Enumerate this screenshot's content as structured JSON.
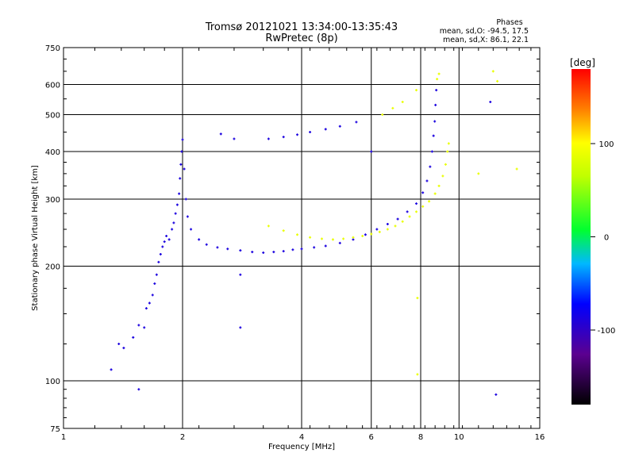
{
  "chart_data": {
    "type": "scatter",
    "title": "Tromsø 20121021 13:34:00-13:35:43",
    "subtitle": "RwPretec (8p)",
    "xlabel": "Frequency [MHz]",
    "ylabel": "Stationary phase Virtual Height [km]",
    "x_scale": "log",
    "y_scale": "log",
    "xlim": [
      1,
      16
    ],
    "ylim": [
      75,
      750
    ],
    "x_ticks": [
      1,
      2,
      4,
      6,
      8,
      10,
      16
    ],
    "y_ticks": [
      75,
      100,
      200,
      300,
      400,
      500,
      600,
      750
    ],
    "x_tick_labels": [
      "1",
      "2",
      "4",
      "6",
      "8",
      "10",
      "16"
    ],
    "y_tick_labels": [
      "75",
      "100",
      "200",
      "300",
      "400",
      "500",
      "600",
      "750"
    ],
    "grid": true,
    "stats": {
      "heading": "Phases",
      "line_o": "mean, sd,O: -94.5, 17.5",
      "line_x": "mean, sd,X:  86.1, 22.1"
    },
    "colorbar": {
      "label": "[deg]",
      "range": [
        -180,
        180
      ],
      "ticks": [
        100,
        0,
        -100
      ],
      "tick_labels": [
        "100",
        "0",
        "-100"
      ]
    },
    "series": [
      {
        "name": "O",
        "phase_mean": -94.5,
        "points": [
          {
            "f": 1.32,
            "h": 107
          },
          {
            "f": 1.38,
            "h": 125
          },
          {
            "f": 1.42,
            "h": 122
          },
          {
            "f": 1.5,
            "h": 130
          },
          {
            "f": 1.55,
            "h": 140
          },
          {
            "f": 1.6,
            "h": 138
          },
          {
            "f": 1.62,
            "h": 155
          },
          {
            "f": 1.65,
            "h": 160
          },
          {
            "f": 1.68,
            "h": 168
          },
          {
            "f": 1.7,
            "h": 180
          },
          {
            "f": 1.72,
            "h": 190
          },
          {
            "f": 1.74,
            "h": 205
          },
          {
            "f": 1.76,
            "h": 215
          },
          {
            "f": 1.78,
            "h": 225
          },
          {
            "f": 1.8,
            "h": 232
          },
          {
            "f": 1.82,
            "h": 240
          },
          {
            "f": 1.85,
            "h": 235
          },
          {
            "f": 1.88,
            "h": 250
          },
          {
            "f": 1.9,
            "h": 260
          },
          {
            "f": 1.92,
            "h": 275
          },
          {
            "f": 1.94,
            "h": 290
          },
          {
            "f": 1.96,
            "h": 310
          },
          {
            "f": 1.97,
            "h": 340
          },
          {
            "f": 1.98,
            "h": 370
          },
          {
            "f": 1.99,
            "h": 400
          },
          {
            "f": 2.0,
            "h": 430
          },
          {
            "f": 2.02,
            "h": 360
          },
          {
            "f": 2.04,
            "h": 300
          },
          {
            "f": 2.06,
            "h": 270
          },
          {
            "f": 2.1,
            "h": 250
          },
          {
            "f": 2.2,
            "h": 235
          },
          {
            "f": 2.3,
            "h": 228
          },
          {
            "f": 2.45,
            "h": 224
          },
          {
            "f": 2.6,
            "h": 222
          },
          {
            "f": 2.8,
            "h": 220
          },
          {
            "f": 3.0,
            "h": 218
          },
          {
            "f": 3.2,
            "h": 217
          },
          {
            "f": 3.4,
            "h": 218
          },
          {
            "f": 3.6,
            "h": 219
          },
          {
            "f": 3.8,
            "h": 221
          },
          {
            "f": 4.0,
            "h": 222
          },
          {
            "f": 4.3,
            "h": 224
          },
          {
            "f": 4.6,
            "h": 226
          },
          {
            "f": 5.0,
            "h": 230
          },
          {
            "f": 5.4,
            "h": 235
          },
          {
            "f": 5.8,
            "h": 242
          },
          {
            "f": 6.2,
            "h": 250
          },
          {
            "f": 6.6,
            "h": 258
          },
          {
            "f": 7.0,
            "h": 266
          },
          {
            "f": 7.4,
            "h": 278
          },
          {
            "f": 7.8,
            "h": 292
          },
          {
            "f": 8.1,
            "h": 312
          },
          {
            "f": 8.3,
            "h": 335
          },
          {
            "f": 8.45,
            "h": 365
          },
          {
            "f": 8.55,
            "h": 400
          },
          {
            "f": 8.62,
            "h": 440
          },
          {
            "f": 8.68,
            "h": 480
          },
          {
            "f": 8.72,
            "h": 530
          },
          {
            "f": 8.76,
            "h": 580
          },
          {
            "f": 2.5,
            "h": 445
          },
          {
            "f": 2.7,
            "h": 432
          },
          {
            "f": 3.3,
            "h": 432
          },
          {
            "f": 3.6,
            "h": 437
          },
          {
            "f": 3.9,
            "h": 443
          },
          {
            "f": 4.2,
            "h": 450
          },
          {
            "f": 4.6,
            "h": 458
          },
          {
            "f": 5.0,
            "h": 466
          },
          {
            "f": 5.5,
            "h": 478
          },
          {
            "f": 1.55,
            "h": 95
          },
          {
            "f": 2.8,
            "h": 138
          },
          {
            "f": 2.8,
            "h": 190
          },
          {
            "f": 6.0,
            "h": 400
          },
          {
            "f": 12.4,
            "h": 92
          },
          {
            "f": 12.0,
            "h": 540
          }
        ]
      },
      {
        "name": "X",
        "phase_mean": 86.1,
        "points": [
          {
            "f": 3.3,
            "h": 255
          },
          {
            "f": 3.6,
            "h": 248
          },
          {
            "f": 3.9,
            "h": 242
          },
          {
            "f": 4.2,
            "h": 238
          },
          {
            "f": 4.5,
            "h": 236
          },
          {
            "f": 4.8,
            "h": 235
          },
          {
            "f": 5.1,
            "h": 236
          },
          {
            "f": 5.4,
            "h": 238
          },
          {
            "f": 5.7,
            "h": 240
          },
          {
            "f": 6.0,
            "h": 243
          },
          {
            "f": 6.3,
            "h": 246
          },
          {
            "f": 6.6,
            "h": 250
          },
          {
            "f": 6.9,
            "h": 255
          },
          {
            "f": 7.2,
            "h": 262
          },
          {
            "f": 7.5,
            "h": 270
          },
          {
            "f": 7.8,
            "h": 278
          },
          {
            "f": 8.1,
            "h": 287
          },
          {
            "f": 8.4,
            "h": 296
          },
          {
            "f": 8.7,
            "h": 310
          },
          {
            "f": 8.9,
            "h": 325
          },
          {
            "f": 9.1,
            "h": 345
          },
          {
            "f": 9.25,
            "h": 370
          },
          {
            "f": 9.35,
            "h": 400
          },
          {
            "f": 9.42,
            "h": 420
          },
          {
            "f": 6.4,
            "h": 500
          },
          {
            "f": 6.8,
            "h": 520
          },
          {
            "f": 7.2,
            "h": 540
          },
          {
            "f": 7.8,
            "h": 580
          },
          {
            "f": 8.8,
            "h": 620
          },
          {
            "f": 8.9,
            "h": 640
          },
          {
            "f": 7.85,
            "h": 165
          },
          {
            "f": 7.85,
            "h": 104
          },
          {
            "f": 12.5,
            "h": 612
          },
          {
            "f": 11.2,
            "h": 350
          },
          {
            "f": 14.0,
            "h": 360
          },
          {
            "f": 12.2,
            "h": 650
          }
        ]
      }
    ]
  }
}
